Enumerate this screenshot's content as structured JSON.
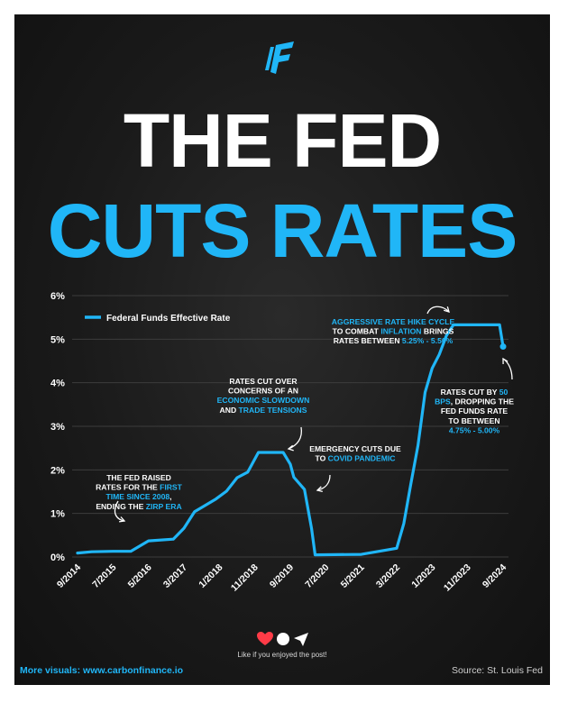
{
  "title_line1": "THE FED",
  "title_line2": "CUTS RATES",
  "colors": {
    "accent": "#20b6f7",
    "heart": "#ff3b47",
    "text": "#ffffff"
  },
  "footer": {
    "left": "More visuals: www.carbonfinance.io",
    "right": "Source: St. Louis Fed",
    "like_text": "Like if you enjoyed the post!"
  },
  "icons": [
    "carbon-finance-logo-icon",
    "heart-icon",
    "comment-icon",
    "send-icon"
  ],
  "chart_data": {
    "type": "line",
    "series": [
      {
        "name": "Federal Funds Effective Rate",
        "x": [
          "2014-09",
          "2015-01",
          "2015-07",
          "2015-12",
          "2016-05",
          "2016-12",
          "2017-03",
          "2017-06",
          "2017-12",
          "2018-03",
          "2018-06",
          "2018-09",
          "2018-12",
          "2019-07",
          "2019-09",
          "2019-10",
          "2020-01",
          "2020-03",
          "2020-04",
          "2021-05",
          "2022-03",
          "2022-05",
          "2022-07",
          "2022-09",
          "2022-11",
          "2023-01",
          "2023-03",
          "2023-05",
          "2023-07",
          "2023-11",
          "2024-08",
          "2024-09"
        ],
        "values": [
          0.09,
          0.12,
          0.13,
          0.13,
          0.37,
          0.41,
          0.66,
          1.04,
          1.33,
          1.51,
          1.82,
          1.95,
          2.4,
          2.4,
          2.13,
          1.83,
          1.55,
          0.65,
          0.05,
          0.06,
          0.2,
          0.77,
          1.68,
          2.56,
          3.78,
          4.33,
          4.65,
          5.08,
          5.33,
          5.33,
          5.33,
          4.83
        ]
      }
    ],
    "x_tick_labels": [
      "9/2014",
      "7/2015",
      "5/2016",
      "3/2017",
      "1/2018",
      "11/2018",
      "9/2019",
      "7/2020",
      "5/2021",
      "3/2022",
      "1/2023",
      "11/2023",
      "9/2024"
    ],
    "y_tick_labels": [
      "0%",
      "1%",
      "2%",
      "3%",
      "4%",
      "5%",
      "6%"
    ],
    "ylim": [
      0,
      6
    ],
    "xlim": [
      "2014-09",
      "2024-09"
    ],
    "grid": "horizontal",
    "legend": "top-left",
    "annotations": [
      {
        "lines": [
          [
            {
              "t": "THE FED RAISED",
              "hl": false
            }
          ],
          [
            {
              "t": "RATES FOR THE ",
              "hl": false
            },
            {
              "t": "FIRST",
              "hl": true
            }
          ],
          [
            {
              "t": "TIME SINCE 2008",
              "hl": true
            },
            {
              "t": ",",
              "hl": false
            }
          ],
          [
            {
              "t": "ENDING THE ",
              "hl": false
            },
            {
              "t": "ZIRP ERA",
              "hl": true
            }
          ]
        ]
      },
      {
        "lines": [
          [
            {
              "t": "RATES CUT OVER",
              "hl": false
            }
          ],
          [
            {
              "t": "CONCERNS OF AN",
              "hl": false
            }
          ],
          [
            {
              "t": "ECONOMIC SLOWDOWN",
              "hl": true
            }
          ],
          [
            {
              "t": "AND ",
              "hl": false
            },
            {
              "t": "TRADE TENSIONS",
              "hl": true
            }
          ]
        ]
      },
      {
        "lines": [
          [
            {
              "t": "EMERGENCY CUTS DUE",
              "hl": false
            }
          ],
          [
            {
              "t": "TO ",
              "hl": false
            },
            {
              "t": "COVID PANDEMIC",
              "hl": true
            }
          ]
        ]
      },
      {
        "lines": [
          [
            {
              "t": "AGGRESSIVE RATE HIKE CYCLE",
              "hl": true
            }
          ],
          [
            {
              "t": "TO COMBAT ",
              "hl": false
            },
            {
              "t": "INFLATION",
              "hl": true
            },
            {
              "t": " BRINGS",
              "hl": false
            }
          ],
          [
            {
              "t": "RATES BETWEEN ",
              "hl": false
            },
            {
              "t": "5.25% - 5.50%",
              "hl": true
            }
          ]
        ]
      },
      {
        "lines": [
          [
            {
              "t": "RATES CUT BY ",
              "hl": false
            },
            {
              "t": "50",
              "hl": true
            }
          ],
          [
            {
              "t": "BPS",
              "hl": true
            },
            {
              "t": ", DROPPING THE",
              "hl": false
            }
          ],
          [
            {
              "t": "FED FUNDS RATE",
              "hl": false
            }
          ],
          [
            {
              "t": "TO BETWEEN",
              "hl": false
            }
          ],
          [
            {
              "t": "4.75% - 5.00%",
              "hl": true
            }
          ]
        ]
      }
    ]
  }
}
